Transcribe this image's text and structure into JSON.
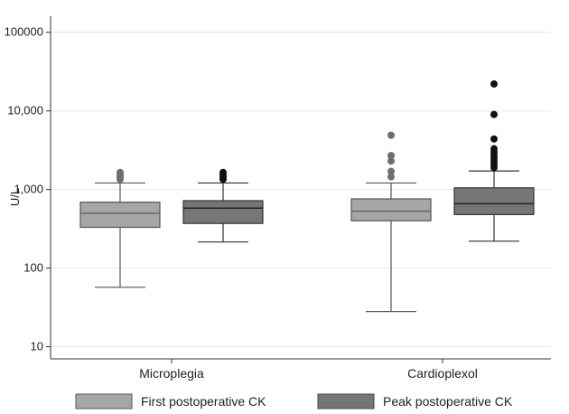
{
  "chart_data": {
    "type": "box",
    "ylabel": "U/L",
    "y_scale": "log",
    "ylim": [
      7,
      160000
    ],
    "y_ticks": [
      {
        "value": 10,
        "label": "10"
      },
      {
        "value": 100,
        "label": "100"
      },
      {
        "value": 1000,
        "label": "1,000"
      },
      {
        "value": 10000,
        "label": "10,000"
      },
      {
        "value": 100000,
        "label": "100000"
      }
    ],
    "grid": true,
    "categories": [
      "Microplegia",
      "Cardioplexol"
    ],
    "legend_position": "bottom",
    "series": [
      {
        "name": "First postoperative CK",
        "color": "#a6a6a6",
        "boxes": [
          {
            "category": "Microplegia",
            "whisker_low": 57,
            "q1": 330,
            "median": 500,
            "q3": 690,
            "whisker_high": 1210,
            "outliers": [
              1350,
              1450,
              1550,
              1650
            ]
          },
          {
            "category": "Cardioplexol",
            "whisker_low": 28,
            "q1": 400,
            "median": 530,
            "q3": 760,
            "whisker_high": 1210,
            "outliers": [
              1450,
              1700,
              2300,
              2700,
              4900
            ]
          }
        ]
      },
      {
        "name": "Peak postoperative CK",
        "color": "#767676",
        "boxes": [
          {
            "category": "Microplegia",
            "whisker_low": 215,
            "q1": 370,
            "median": 580,
            "q3": 720,
            "whisker_high": 1210,
            "outliers": [
              1350,
              1450,
              1550,
              1650
            ]
          },
          {
            "category": "Cardioplexol",
            "whisker_low": 220,
            "q1": 480,
            "median": 660,
            "q3": 1050,
            "whisker_high": 1720,
            "outliers": [
              1900,
              2100,
              2300,
              2500,
              2700,
              3000,
              3300,
              4400,
              9000,
              22000
            ]
          }
        ]
      }
    ]
  }
}
